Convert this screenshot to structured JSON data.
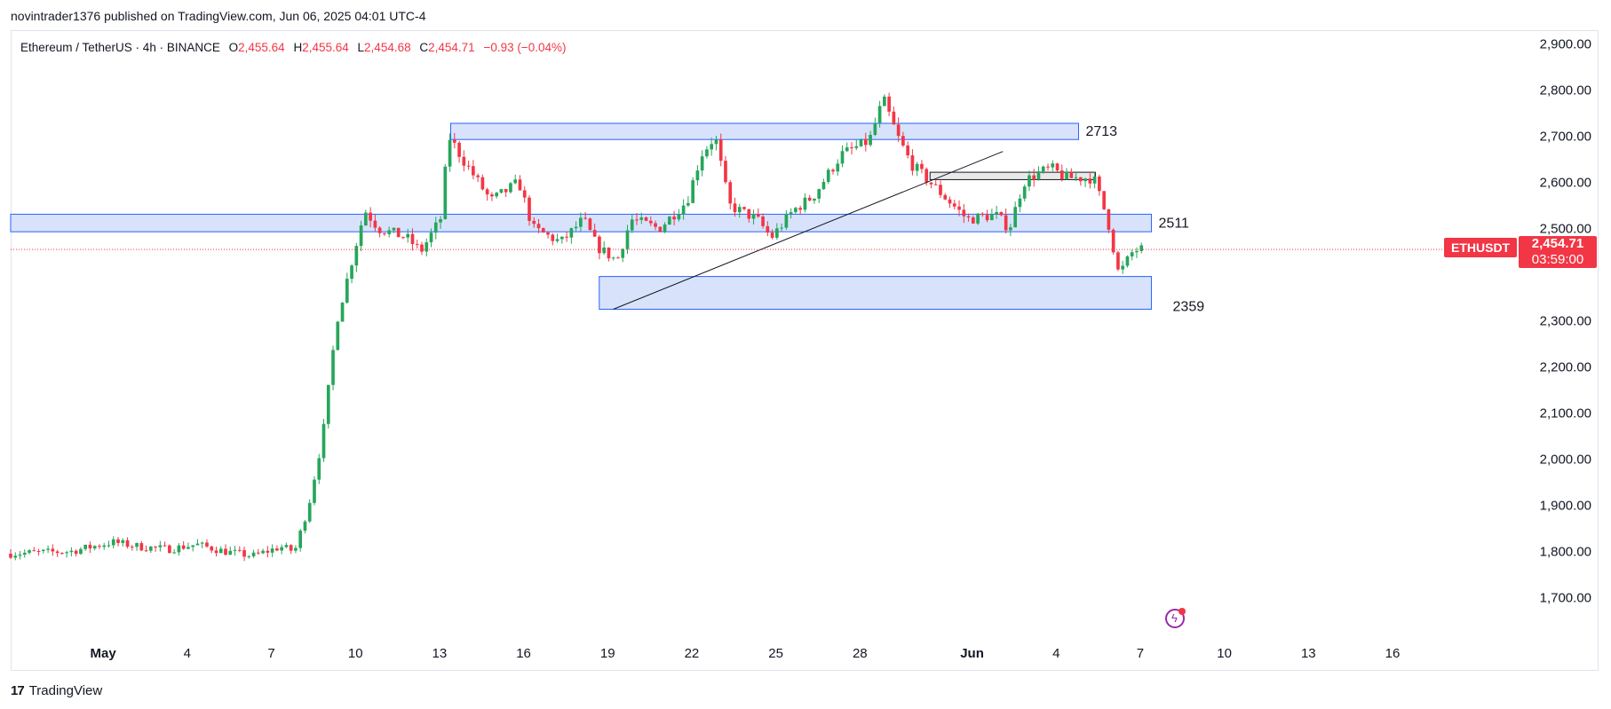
{
  "header": {
    "publisher_line": "novintrader1376 published on TradingView.com, Jun 06, 2025 04:01 UTC-4"
  },
  "legend": {
    "symbol": "Ethereum / TetherUS · 4h · BINANCE",
    "open_label": "O",
    "open": "2,455.64",
    "high_label": "H",
    "high": "2,455.64",
    "low_label": "L",
    "low": "2,454.68",
    "close_label": "C",
    "close": "2,454.71",
    "change": "−0.93 (−0.04%)"
  },
  "price_badge": {
    "symbol": "ETHUSDT",
    "price": "2,454.71",
    "countdown": "03:59:00"
  },
  "footer": {
    "brand": "TradingView",
    "logo": "17"
  },
  "colors": {
    "up": "#26a65b",
    "down": "#f23645",
    "zone_fill": "#d6e2fb",
    "zone_stroke": "#2962ff",
    "grid_text": "#131722"
  },
  "chart_data": {
    "type": "candlestick",
    "title": "Ethereum / TetherUS · 4h · BINANCE",
    "y_ticks": [
      "2,900.00",
      "2,800.00",
      "2,700.00",
      "2,600.00",
      "2,500.00",
      "2,400.00",
      "2,300.00",
      "2,200.00",
      "2,100.00",
      "2,000.00",
      "1,900.00",
      "1,800.00",
      "1,700.00"
    ],
    "y_tick_values": [
      2900,
      2800,
      2700,
      2600,
      2500,
      2400,
      2300,
      2200,
      2100,
      2000,
      1900,
      1800,
      1700
    ],
    "x_ticks": [
      {
        "label": "May",
        "day": 1
      },
      {
        "label": "4",
        "day": 4
      },
      {
        "label": "7",
        "day": 7
      },
      {
        "label": "10",
        "day": 10
      },
      {
        "label": "13",
        "day": 13
      },
      {
        "label": "16",
        "day": 16
      },
      {
        "label": "19",
        "day": 19
      },
      {
        "label": "22",
        "day": 22
      },
      {
        "label": "25",
        "day": 25
      },
      {
        "label": "28",
        "day": 28
      },
      {
        "label": "Jun",
        "day": 32
      },
      {
        "label": "4",
        "day": 35
      },
      {
        "label": "7",
        "day": 38
      },
      {
        "label": "10",
        "day": 41
      },
      {
        "label": "13",
        "day": 44
      },
      {
        "label": "16",
        "day": 47
      }
    ],
    "x_unit": "days since Apr 30 2025 (May 1 = 1, Jun 1 = 32)",
    "ylim": [
      1620,
      2930
    ],
    "xlim": [
      -2.3,
      51.5
    ],
    "last_price": 2454.71,
    "zones": [
      {
        "label": "2713",
        "x0": 13.4,
        "x1": 35.8,
        "y0": 2693,
        "y1": 2728
      },
      {
        "label": "2511",
        "x0": -2.3,
        "x1": 38.4,
        "y0": 2493,
        "y1": 2531
      },
      {
        "label": "2359",
        "x0": 18.7,
        "x1": 38.4,
        "y0": 2325,
        "y1": 2396
      },
      {
        "label": "",
        "x0": 30.5,
        "x1": 36.4,
        "y0": 2606,
        "y1": 2622
      }
    ],
    "trendline": {
      "x0": 19.2,
      "y0": 2325,
      "x1": 33.1,
      "y1": 2667
    },
    "anchors": [
      [
        -2.3,
        1795
      ],
      [
        0,
        1800
      ],
      [
        1.5,
        1820
      ],
      [
        2.5,
        1810
      ],
      [
        3.5,
        1805
      ],
      [
        4.5,
        1815
      ],
      [
        5.5,
        1800
      ],
      [
        6.5,
        1790
      ],
      [
        7.5,
        1810
      ],
      [
        8,
        1800
      ],
      [
        8.5,
        1900
      ],
      [
        9,
        2050
      ],
      [
        9.5,
        2300
      ],
      [
        10,
        2420
      ],
      [
        10.5,
        2540
      ],
      [
        11,
        2500
      ],
      [
        12,
        2480
      ],
      [
        12.5,
        2450
      ],
      [
        13.2,
        2520
      ],
      [
        13.5,
        2700
      ],
      [
        14,
        2650
      ],
      [
        15,
        2560
      ],
      [
        16,
        2600
      ],
      [
        16.5,
        2500
      ],
      [
        17.5,
        2470
      ],
      [
        18.3,
        2520
      ],
      [
        18.8,
        2460
      ],
      [
        19.5,
        2430
      ],
      [
        20,
        2520
      ],
      [
        21,
        2500
      ],
      [
        22,
        2560
      ],
      [
        22.5,
        2660
      ],
      [
        23,
        2700
      ],
      [
        23.5,
        2550
      ],
      [
        24.5,
        2520
      ],
      [
        25,
        2480
      ],
      [
        25.8,
        2540
      ],
      [
        26.5,
        2570
      ],
      [
        27.5,
        2660
      ],
      [
        28.5,
        2690
      ],
      [
        29,
        2780
      ],
      [
        29.5,
        2700
      ],
      [
        30,
        2640
      ],
      [
        31,
        2580
      ],
      [
        32,
        2520
      ],
      [
        33,
        2530
      ],
      [
        33.5,
        2500
      ],
      [
        34,
        2600
      ],
      [
        34.5,
        2620
      ],
      [
        35,
        2630
      ],
      [
        35.5,
        2610
      ],
      [
        36.5,
        2610
      ],
      [
        37,
        2520
      ],
      [
        37.4,
        2400
      ],
      [
        37.6,
        2420
      ],
      [
        37.9,
        2450
      ],
      [
        38.1,
        2455
      ]
    ],
    "candle_step_days": 0.1667
  }
}
